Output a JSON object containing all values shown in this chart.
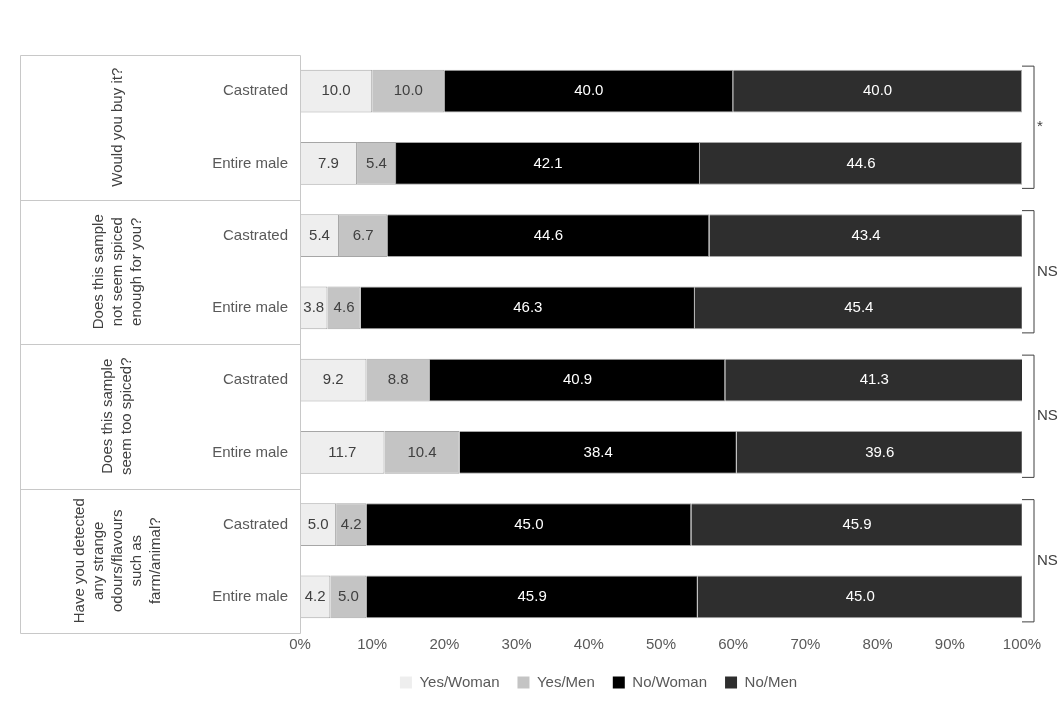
{
  "chart_data": {
    "type": "bar",
    "orientation": "horizontal",
    "stacked": true,
    "categories": [
      "Castrated",
      "Entire male",
      "Castrated",
      "Entire male",
      "Castrated",
      "Entire male",
      "Castrated",
      "Entire male"
    ],
    "series": [
      {
        "name": "Yes/Woman",
        "color": "#eeeeee",
        "values": [
          10.0,
          7.9,
          5.4,
          3.8,
          9.2,
          11.7,
          5.0,
          4.2
        ],
        "value_labels": [
          "10.0",
          "7.9",
          "5.4",
          "3.8",
          "9.2",
          "11.7",
          "5.0",
          "4.2"
        ]
      },
      {
        "name": "Yes/Men",
        "color": "#c4c4c4",
        "values": [
          10.0,
          5.4,
          6.7,
          4.6,
          8.8,
          10.4,
          4.2,
          5.0
        ],
        "value_labels": [
          "10.0",
          "5.4",
          "6.7",
          "4.6",
          "8.8",
          "10.4",
          "4.2",
          "5.0"
        ]
      },
      {
        "name": "No/Woman",
        "color": "#000000",
        "values": [
          40.0,
          42.1,
          44.6,
          46.3,
          40.9,
          38.4,
          45.0,
          45.9
        ],
        "value_labels": [
          "40.0",
          "42.1",
          "44.6",
          "46.3",
          "40.9",
          "38.4",
          "45.0",
          "45.9"
        ]
      },
      {
        "name": "No/Men",
        "color": "#2e2e2e",
        "values": [
          40.0,
          44.6,
          43.4,
          45.4,
          41.3,
          39.6,
          45.9,
          45.0
        ],
        "value_labels": [
          "40.0",
          "44.6",
          "43.4",
          "45.4",
          "41.3",
          "39.6",
          "45.9",
          "45.0"
        ]
      }
    ],
    "xlim": [
      0,
      100
    ],
    "xticks": [
      {
        "value": 0,
        "label": "0%"
      },
      {
        "value": 10,
        "label": "10%"
      },
      {
        "value": 20,
        "label": "20%"
      },
      {
        "value": 30,
        "label": "30%"
      },
      {
        "value": 40,
        "label": "40%"
      },
      {
        "value": 50,
        "label": "50%"
      },
      {
        "value": 60,
        "label": "60%"
      },
      {
        "value": 70,
        "label": "70%"
      },
      {
        "value": 80,
        "label": "80%"
      },
      {
        "value": 90,
        "label": "90%"
      },
      {
        "value": 100,
        "label": "100%"
      }
    ],
    "annotations": [
      "Would you buy it?",
      "Does this sample not seem spiced enough for you?",
      "Does this sample seem too spiced?",
      "Have you detected any strange odours/flavours such as farm/animal?",
      "*",
      "NS",
      "NS",
      "NS"
    ],
    "grid": false,
    "legend": "bottom"
  }
}
